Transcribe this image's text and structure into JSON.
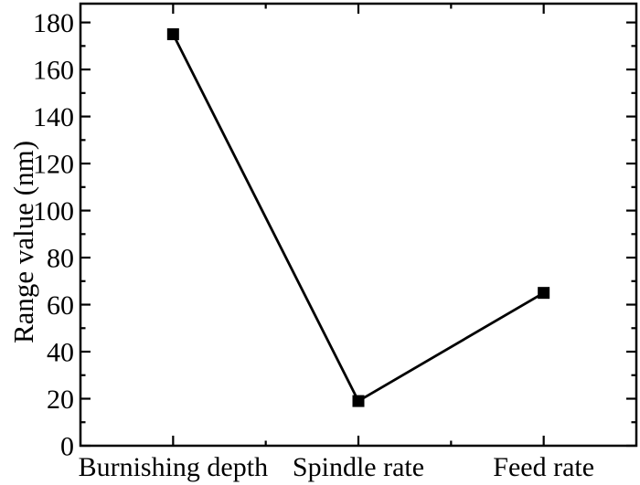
{
  "figure": {
    "background": "#ffffff",
    "ink_color": "#000000"
  },
  "chart_data": {
    "type": "line",
    "categories": [
      "Burnishing depth",
      "Spindle rate",
      "Feed rate"
    ],
    "values": [
      175,
      19,
      65
    ],
    "title": "",
    "xlabel": "",
    "ylabel": "Range value (nm)",
    "ylim": [
      0,
      188
    ],
    "yticks_major": [
      0,
      20,
      40,
      60,
      80,
      100,
      120,
      140,
      160,
      180
    ],
    "ytick_minor_interval": 10,
    "grid": false,
    "legend": "none",
    "marker": "filled-square",
    "line_color": "#000000",
    "marker_color": "#000000",
    "axis_color": "#000000",
    "mirrored_ticks": true,
    "ticks_direction": "in"
  }
}
